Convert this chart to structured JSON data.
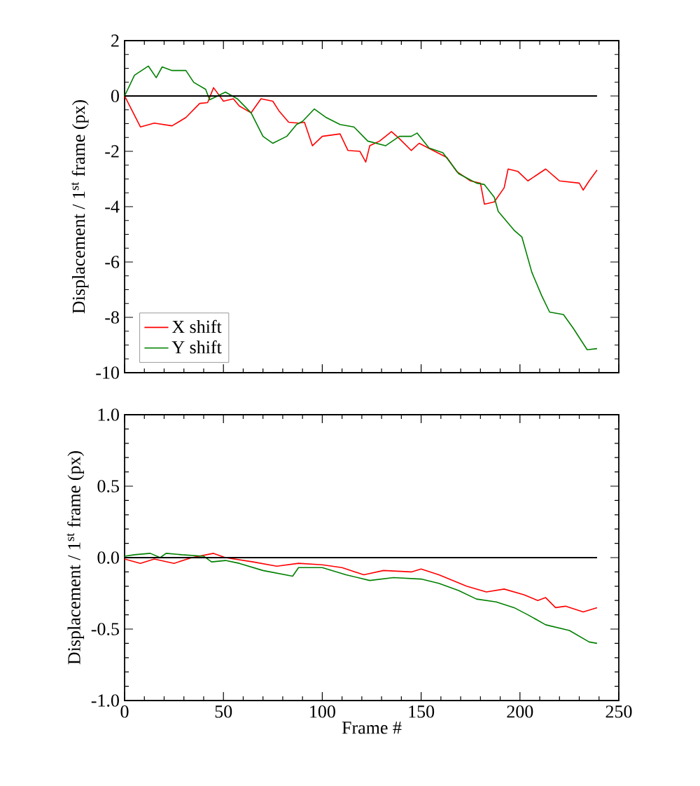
{
  "chart_data": [
    {
      "type": "line",
      "ylabel": "Displacement / 1$^{st}$ frame (px)",
      "xlim": [
        0,
        250
      ],
      "xticks": [
        0,
        50,
        100,
        150,
        200,
        250
      ],
      "ylim": [
        -10,
        2
      ],
      "yticks": [
        -10,
        -8,
        -6,
        -4,
        -2,
        0,
        2
      ],
      "tick_labels": "y",
      "legend": "bottom left",
      "grid": false,
      "ref_lines": [
        {
          "axis": "y",
          "value": 0,
          "color": "#000000"
        }
      ],
      "series": [
        {
          "name": "X shift",
          "color": "#ff0000",
          "x": [
            0,
            8,
            15,
            24,
            31,
            38,
            42,
            45,
            50,
            55,
            58,
            64,
            69,
            75,
            78,
            83,
            88,
            91,
            95,
            100,
            109,
            113,
            119,
            122,
            124,
            129,
            135,
            139,
            145,
            149,
            156,
            163,
            168,
            175,
            180,
            182,
            187,
            192,
            194,
            199,
            204,
            213,
            220,
            230,
            232,
            235,
            239
          ],
          "values": [
            0,
            -1.12,
            -0.98,
            -1.08,
            -0.78,
            -0.27,
            -0.24,
            0.3,
            -0.19,
            -0.1,
            -0.36,
            -0.61,
            -0.1,
            -0.19,
            -0.53,
            -0.95,
            -0.98,
            -0.95,
            -1.8,
            -1.46,
            -1.37,
            -1.97,
            -2.0,
            -2.39,
            -1.8,
            -1.63,
            -1.29,
            -1.54,
            -1.97,
            -1.71,
            -1.97,
            -2.22,
            -2.73,
            -3.07,
            -3.15,
            -3.91,
            -3.83,
            -3.32,
            -2.64,
            -2.73,
            -3.07,
            -2.64,
            -3.07,
            -3.15,
            -3.4,
            -3.07,
            -2.68
          ]
        },
        {
          "name": "Y shift",
          "color": "#008000",
          "x": [
            0,
            5,
            12,
            16,
            19,
            24,
            31,
            35,
            41,
            43,
            51,
            57,
            64,
            70,
            75,
            82,
            87,
            90,
            96,
            102,
            109,
            116,
            123,
            132,
            139,
            145,
            148,
            154,
            161,
            169,
            178,
            182,
            187,
            189,
            197,
            201,
            206,
            211,
            215,
            222,
            227,
            234,
            239
          ],
          "values": [
            0,
            0.75,
            1.08,
            0.66,
            1.05,
            0.92,
            0.92,
            0.49,
            0.24,
            -0.14,
            0.14,
            -0.1,
            -0.61,
            -1.46,
            -1.71,
            -1.46,
            -1.03,
            -0.92,
            -0.47,
            -0.78,
            -1.03,
            -1.12,
            -1.63,
            -1.8,
            -1.46,
            -1.46,
            -1.34,
            -1.88,
            -2.05,
            -2.81,
            -3.15,
            -3.2,
            -3.66,
            -4.17,
            -4.85,
            -5.1,
            -6.37,
            -7.22,
            -7.81,
            -7.9,
            -8.4,
            -9.17,
            -9.13
          ]
        }
      ]
    },
    {
      "type": "line",
      "xlabel": "Frame #",
      "ylabel": "Displacement / 1$^{st}$ frame (px)",
      "xlim": [
        0,
        250
      ],
      "xticks": [
        0,
        50,
        100,
        150,
        200,
        250
      ],
      "ylim": [
        -1.0,
        1.0
      ],
      "yticks": [
        {
          "value": -1.0,
          "label": "-1.0"
        },
        {
          "value": -0.5,
          "label": "-0.5"
        },
        {
          "value": 0.0,
          "label": "0.0"
        },
        {
          "value": 0.5,
          "label": "0.5"
        },
        {
          "value": 1.0,
          "label": "1.0"
        }
      ],
      "legend": false,
      "grid": false,
      "ref_lines": [
        {
          "axis": "y",
          "value": 0,
          "color": "#000000"
        }
      ],
      "series": [
        {
          "color": "#ff0000",
          "x": [
            0,
            8,
            15,
            25,
            34,
            45,
            51,
            65,
            77,
            88,
            100,
            110,
            121,
            131,
            145,
            150,
            159,
            173,
            183,
            192,
            202,
            209,
            213,
            218,
            223,
            232,
            239
          ],
          "values": [
            -0.01,
            -0.04,
            -0.01,
            -0.04,
            0,
            0.03,
            0,
            -0.03,
            -0.06,
            -0.04,
            -0.05,
            -0.07,
            -0.12,
            -0.09,
            -0.1,
            -0.08,
            -0.12,
            -0.2,
            -0.24,
            -0.22,
            -0.26,
            -0.3,
            -0.28,
            -0.35,
            -0.34,
            -0.38,
            -0.35
          ]
        },
        {
          "color": "#008000",
          "x": [
            0,
            5,
            13,
            18,
            21,
            29,
            40,
            44,
            51,
            58,
            70,
            85,
            88,
            100,
            112,
            124,
            136,
            150,
            159,
            169,
            178,
            188,
            197,
            204,
            213,
            225,
            235,
            239
          ],
          "values": [
            0.01,
            0.02,
            0.03,
            0,
            0.03,
            0.02,
            0.01,
            -0.03,
            -0.02,
            -0.04,
            -0.09,
            -0.13,
            -0.07,
            -0.07,
            -0.12,
            -0.16,
            -0.14,
            -0.15,
            -0.18,
            -0.23,
            -0.29,
            -0.31,
            -0.35,
            -0.4,
            -0.47,
            -0.51,
            -0.59,
            -0.6
          ]
        }
      ]
    }
  ]
}
